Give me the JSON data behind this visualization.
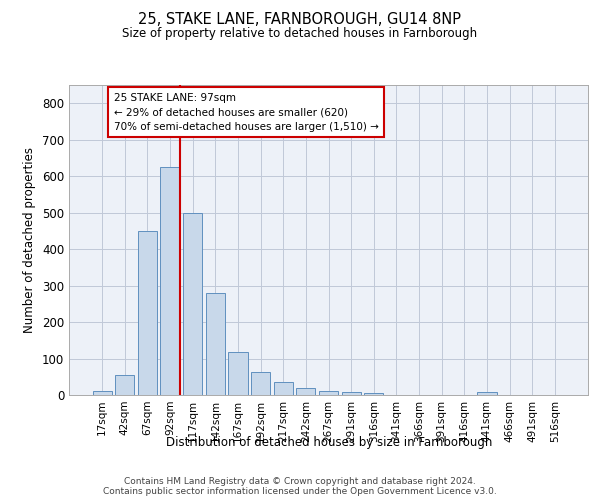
{
  "title1": "25, STAKE LANE, FARNBOROUGH, GU14 8NP",
  "title2": "Size of property relative to detached houses in Farnborough",
  "xlabel": "Distribution of detached houses by size in Farnborough",
  "ylabel": "Number of detached properties",
  "footnote1": "Contains HM Land Registry data © Crown copyright and database right 2024.",
  "footnote2": "Contains public sector information licensed under the Open Government Licence v3.0.",
  "bar_color": "#c8d8ea",
  "bar_edge_color": "#6090bf",
  "grid_color": "#c0c8d8",
  "bg_color": "#edf1f8",
  "vline_color": "#cc0000",
  "box_edge_color": "#cc0000",
  "categories": [
    "17sqm",
    "42sqm",
    "67sqm",
    "92sqm",
    "117sqm",
    "142sqm",
    "167sqm",
    "192sqm",
    "217sqm",
    "242sqm",
    "267sqm",
    "291sqm",
    "316sqm",
    "341sqm",
    "366sqm",
    "391sqm",
    "416sqm",
    "441sqm",
    "466sqm",
    "491sqm",
    "516sqm"
  ],
  "values": [
    12,
    55,
    450,
    625,
    500,
    280,
    118,
    62,
    35,
    20,
    10,
    8,
    5,
    0,
    0,
    0,
    0,
    8,
    0,
    0,
    0
  ],
  "ylim": [
    0,
    850
  ],
  "yticks": [
    0,
    100,
    200,
    300,
    400,
    500,
    600,
    700,
    800
  ],
  "vline_x": 3.42,
  "annotation_line1": "25 STAKE LANE: 97sqm",
  "annotation_line2": "← 29% of detached houses are smaller (620)",
  "annotation_line3": "70% of semi-detached houses are larger (1,510) →"
}
